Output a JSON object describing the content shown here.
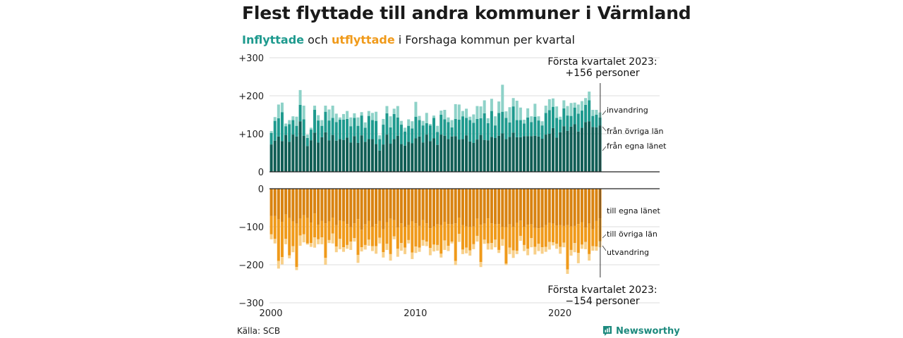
{
  "title": "Flest flyttade till andra kommuner i Värmland",
  "subtitle": {
    "in_word": "Inflyttade",
    "mid1": " och ",
    "out_word": "utflyttade",
    "rest": " i Forshaga kommun per kvartal"
  },
  "colors": {
    "in_own": "#105e55",
    "in_other": "#1e9a8e",
    "in_imm": "#8ed2c8",
    "out_own": "#d98310",
    "out_other": "#f09a1a",
    "out_emig": "#f8d08a",
    "grid": "#dddddd",
    "axis": "#222222",
    "brand": "#1d8a7e"
  },
  "source": "Källa: SCB",
  "brand": {
    "name": "Newsworthy",
    "icon": "bar-chart-logo-icon"
  },
  "chart_data": {
    "type": "bar",
    "stacked": true,
    "x_start": "2000 Q1",
    "x_ticks": [
      "2000",
      "2010",
      "2020"
    ],
    "y_top": {
      "range": [
        0,
        300
      ],
      "ticks": [
        "+300",
        "+200",
        "+100",
        "0"
      ]
    },
    "y_bottom": {
      "range": [
        -300,
        0
      ],
      "ticks": [
        "0",
        "−100",
        "−200",
        "−300"
      ]
    },
    "annotation_top": {
      "line1": "Första kvartalet 2023:",
      "line2": "+156 personer"
    },
    "annotation_bottom": {
      "line1": "Första kvartalet 2023:",
      "line2": "−154 personer"
    },
    "series_labels_top": [
      "invandring",
      "från övriga län",
      "från egna länet"
    ],
    "series_labels_bottom": [
      "till egna länet",
      "till övriga län",
      "utvandring"
    ],
    "inflow": {
      "egna_lanet": [
        72,
        82,
        93,
        81,
        97,
        79,
        98,
        93,
        133,
        95,
        68,
        83,
        103,
        77,
        91,
        104,
        83,
        97,
        82,
        86,
        84,
        90,
        77,
        94,
        76,
        96,
        79,
        86,
        86,
        73,
        56,
        72,
        98,
        74,
        86,
        95,
        73,
        69,
        79,
        75,
        88,
        93,
        77,
        98,
        81,
        88,
        71,
        98,
        95,
        86,
        93,
        94,
        85,
        86,
        96,
        80,
        76,
        85,
        97,
        84,
        83,
        92,
        89,
        95,
        101,
        86,
        92,
        103,
        91,
        91,
        94,
        94,
        94,
        95,
        93,
        87,
        98,
        100,
        115,
        90,
        104,
        120,
        108,
        119,
        125,
        106,
        116,
        131,
        133,
        118,
        117,
        122
      ],
      "ovriga_lan": [
        30,
        52,
        48,
        76,
        23,
        46,
        38,
        28,
        43,
        43,
        21,
        28,
        60,
        58,
        30,
        54,
        52,
        45,
        49,
        51,
        53,
        49,
        43,
        48,
        45,
        52,
        37,
        61,
        50,
        61,
        30,
        52,
        56,
        43,
        66,
        48,
        51,
        37,
        42,
        39,
        57,
        43,
        45,
        30,
        41,
        54,
        34,
        52,
        43,
        45,
        24,
        45,
        52,
        60,
        46,
        56,
        53,
        54,
        44,
        70,
        45,
        68,
        33,
        60,
        57,
        56,
        38,
        69,
        45,
        45,
        33,
        49,
        37,
        50,
        42,
        35,
        57,
        62,
        56,
        52,
        33,
        47,
        40,
        28,
        44,
        47,
        45,
        45,
        55,
        29,
        33,
        21
      ],
      "invandring": [
        5,
        10,
        36,
        25,
        7,
        11,
        10,
        24,
        39,
        36,
        9,
        5,
        11,
        14,
        15,
        16,
        29,
        32,
        22,
        6,
        15,
        21,
        23,
        12,
        22,
        9,
        14,
        13,
        19,
        24,
        10,
        15,
        19,
        29,
        14,
        30,
        10,
        10,
        17,
        19,
        39,
        11,
        12,
        27,
        4,
        6,
        16,
        11,
        25,
        12,
        19,
        39,
        40,
        14,
        24,
        9,
        22,
        34,
        31,
        34,
        13,
        32,
        24,
        30,
        71,
        17,
        40,
        22,
        51,
        33,
        10,
        24,
        15,
        34,
        11,
        11,
        19,
        29,
        22,
        30,
        8,
        21,
        25,
        34,
        13,
        24,
        25,
        18,
        23,
        16,
        13,
        13
      ]
    },
    "outflow": {
      "egna_lanet": [
        -72,
        -72,
        -81,
        -87,
        -68,
        -77,
        -86,
        -92,
        -79,
        -70,
        -77,
        -89,
        -65,
        -95,
        -85,
        -91,
        -86,
        -76,
        -96,
        -84,
        -86,
        -93,
        -101,
        -91,
        -80,
        -108,
        -94,
        -85,
        -100,
        -93,
        -85,
        -107,
        -88,
        -79,
        -83,
        -102,
        -91,
        -100,
        -96,
        -86,
        -91,
        -98,
        -83,
        -91,
        -104,
        -99,
        -94,
        -96,
        -87,
        -93,
        -94,
        -91,
        -76,
        -96,
        -99,
        -100,
        -99,
        -79,
        -95,
        -92,
        -78,
        -91,
        -94,
        -93,
        -100,
        -101,
        -94,
        -100,
        -90,
        -84,
        -100,
        -95,
        -94,
        -103,
        -104,
        -102,
        -96,
        -90,
        -92,
        -97,
        -96,
        -98,
        -96,
        -99,
        -98,
        -93,
        -88,
        -102,
        -92,
        -107,
        -85,
        -78
      ],
      "ovriga_lan": [
        -48,
        -60,
        -109,
        -93,
        -64,
        -98,
        -65,
        -114,
        -44,
        -50,
        -67,
        -54,
        -63,
        -38,
        -43,
        -91,
        -49,
        -42,
        -56,
        -48,
        -68,
        -55,
        -38,
        -39,
        -94,
        -46,
        -54,
        -49,
        -51,
        -58,
        -44,
        -60,
        -57,
        -93,
        -42,
        -56,
        -52,
        -55,
        -39,
        -82,
        -61,
        -57,
        -52,
        -48,
        -52,
        -48,
        -54,
        -75,
        -49,
        -57,
        -45,
        -99,
        -43,
        -64,
        -56,
        -62,
        -47,
        -45,
        -98,
        -42,
        -66,
        -52,
        -40,
        -68,
        -33,
        -96,
        -61,
        -62,
        -73,
        -40,
        -48,
        -63,
        -36,
        -50,
        -41,
        -52,
        -57,
        -50,
        -49,
        -48,
        -57,
        -44,
        -116,
        -62,
        -45,
        -76,
        -59,
        -38,
        -80,
        -44,
        -67,
        -60
      ],
      "utvandring": [
        -13,
        -12,
        -20,
        -19,
        -14,
        -8,
        -16,
        -8,
        -27,
        -21,
        -3,
        -10,
        -27,
        -13,
        -18,
        -18,
        -8,
        -26,
        -15,
        -27,
        -12,
        -10,
        -22,
        -9,
        -21,
        -11,
        -12,
        -16,
        -13,
        -20,
        -15,
        -14,
        -16,
        -17,
        -8,
        -21,
        -20,
        -17,
        -9,
        -17,
        -17,
        -11,
        -15,
        -12,
        -19,
        -18,
        -15,
        -10,
        -25,
        -14,
        -5,
        -11,
        -21,
        -12,
        -15,
        -14,
        -13,
        -15,
        -13,
        -11,
        -16,
        -17,
        -20,
        -8,
        -17,
        -4,
        -17,
        -20,
        -9,
        -13,
        -16,
        -17,
        -24,
        -20,
        -19,
        -17,
        -13,
        -20,
        -8,
        -13,
        -18,
        -12,
        -12,
        -15,
        -24,
        -27,
        -11,
        -19,
        -17,
        -12,
        -11,
        -16
      ]
    }
  }
}
